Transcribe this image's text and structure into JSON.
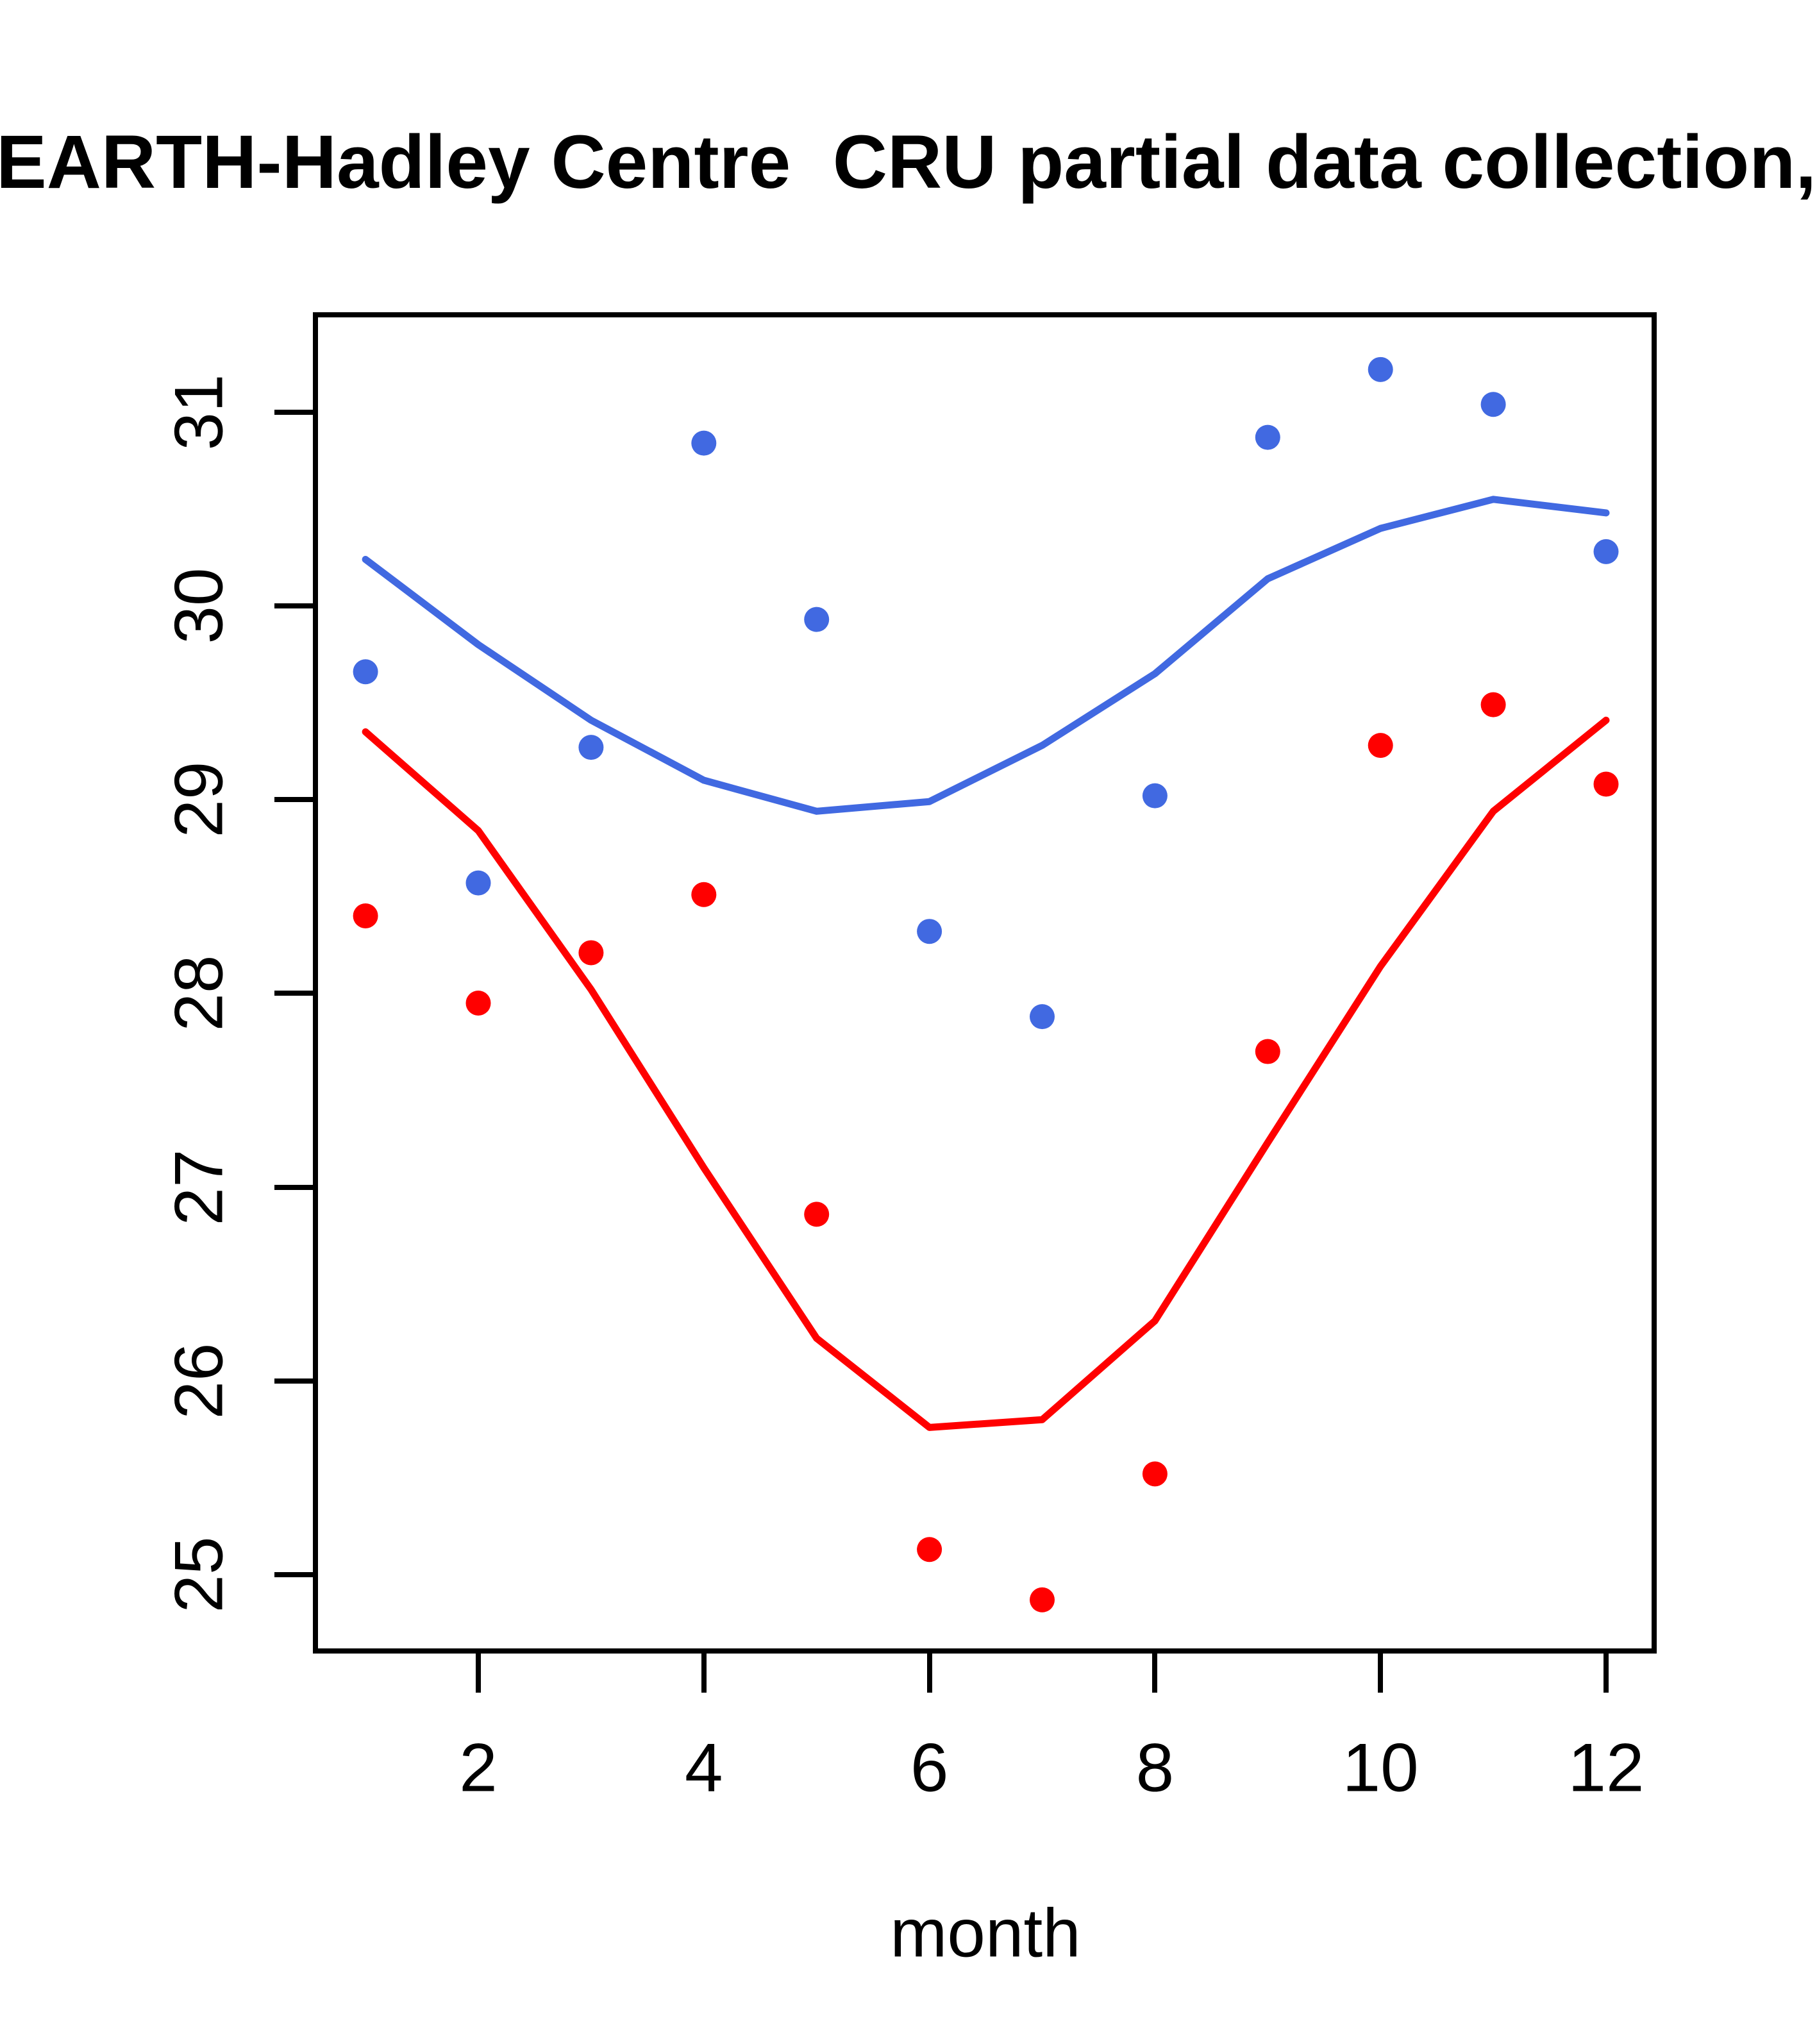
{
  "chart_data": {
    "type": "scatter",
    "title": "EARTH-Hadley Centre  CRU partial data collection,",
    "title_note": "clipped at both image edges",
    "xlabel": "month",
    "ylabel": "",
    "x": [
      1,
      2,
      3,
      4,
      5,
      6,
      7,
      8,
      9,
      10,
      11,
      12
    ],
    "xlim": [
      0.56,
      12.44
    ],
    "ylim": [
      24.6,
      31.5
    ],
    "x_ticks": [
      2,
      4,
      6,
      8,
      10,
      12
    ],
    "y_ticks": [
      25,
      26,
      27,
      28,
      29,
      30,
      31
    ],
    "grid": false,
    "legend": "none",
    "colors": {
      "blue": "#4169E1",
      "red": "#FF0000",
      "axis": "#000000"
    },
    "series": [
      {
        "name": "blue-points",
        "kind": "points",
        "color": "#4169E1",
        "values": [
          29.66,
          28.57,
          29.27,
          30.84,
          29.93,
          28.32,
          27.88,
          29.02,
          30.87,
          31.22,
          31.04,
          30.28
        ]
      },
      {
        "name": "red-points",
        "kind": "points",
        "color": "#FF0000",
        "values": [
          28.4,
          27.95,
          28.21,
          28.51,
          26.86,
          25.13,
          24.87,
          25.52,
          27.7,
          29.28,
          29.49,
          29.08
        ]
      },
      {
        "name": "blue-fit-line",
        "kind": "line",
        "color": "#4169E1",
        "values": [
          30.24,
          29.8,
          29.41,
          29.1,
          28.94,
          28.99,
          29.28,
          29.65,
          30.14,
          30.4,
          30.55,
          30.48
        ]
      },
      {
        "name": "red-fit-line",
        "kind": "line",
        "color": "#FF0000",
        "values": [
          29.35,
          28.84,
          28.02,
          27.1,
          26.22,
          25.76,
          25.8,
          26.31,
          27.23,
          28.14,
          28.94,
          29.41
        ]
      }
    ]
  }
}
